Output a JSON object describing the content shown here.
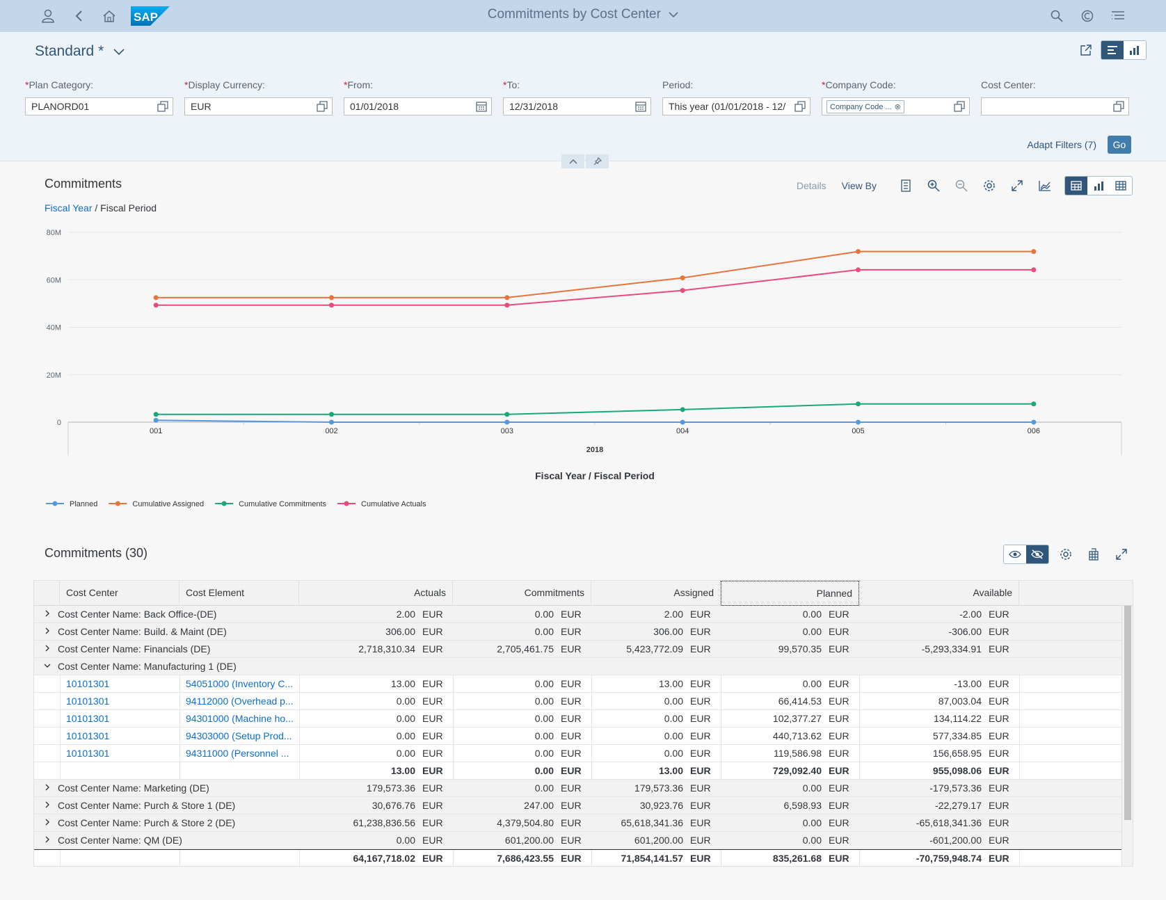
{
  "shell": {
    "title": "Commitments by Cost Center"
  },
  "filterbar": {
    "variant": "Standard *",
    "fields": [
      {
        "label": "Plan Category:",
        "required": "*",
        "value": "PLANORD01"
      },
      {
        "label": "Display Currency:",
        "required": "*",
        "value": "EUR"
      },
      {
        "label": "From:",
        "required": "*",
        "value": "01/01/2018"
      },
      {
        "label": "To:",
        "required": "*",
        "value": "12/31/2018"
      },
      {
        "label": "Period:",
        "required": "",
        "value": "This year (01/01/2018 - 12/"
      },
      {
        "label": "Company Code:",
        "required": "*",
        "value": "Company Code ..."
      },
      {
        "label": "Cost Center:",
        "required": "",
        "value": ""
      }
    ],
    "adapt_filters": "Adapt Filters (7)",
    "go": "Go"
  },
  "chart_section": {
    "title": "Commitments",
    "drill_link": "Fiscal Year",
    "drill_sep": " / ",
    "drill_current": "Fiscal Period",
    "details": "Details",
    "view_by": "View By"
  },
  "chart_data": {
    "type": "line",
    "categories": [
      "001",
      "002",
      "003",
      "004",
      "005",
      "006"
    ],
    "group_label": "2018",
    "xlabel": "Fiscal Year / Fiscal Period",
    "ylabel": "",
    "ylim": [
      0,
      80000000
    ],
    "yticks": [
      "0",
      "20M",
      "40M",
      "60M",
      "80M"
    ],
    "grid": true,
    "legend_position": "bottom-left",
    "series": [
      {
        "name": "Planned",
        "color": "#5899da",
        "values": [
          800000,
          0,
          0,
          0,
          0,
          0
        ]
      },
      {
        "name": "Cumulative Assigned",
        "color": "#e8743b",
        "values": [
          52500000,
          52500000,
          52500000,
          60800000,
          71900000,
          71900000
        ]
      },
      {
        "name": "Cumulative Commitments",
        "color": "#19a979",
        "values": [
          3300000,
          3300000,
          3300000,
          5300000,
          7700000,
          7700000
        ]
      },
      {
        "name": "Cumulative Actuals",
        "color": "#ed4a7b",
        "values": [
          49300000,
          49300000,
          49300000,
          55500000,
          64200000,
          64200000
        ]
      }
    ]
  },
  "table_section": {
    "title": "Commitments (30)",
    "columns": [
      "Cost Center",
      "Cost Element",
      "Actuals",
      "Commitments",
      "Assigned",
      "Planned",
      "Available"
    ],
    "rows": [
      {
        "kind": "grp",
        "expander": "›",
        "label": "Cost Center Name: Back Office-(DE)",
        "vals": [
          "2.00",
          "0.00",
          "2.00",
          "0.00",
          "-2.00"
        ]
      },
      {
        "kind": "grp",
        "expander": "›",
        "label": "Cost Center Name: Build. & Maint (DE)",
        "vals": [
          "306.00",
          "0.00",
          "306.00",
          "0.00",
          "-306.00"
        ]
      },
      {
        "kind": "grp",
        "expander": "›",
        "label": "Cost Center Name: Financials (DE)",
        "vals": [
          "2,718,310.34",
          "2,705,461.75",
          "5,423,772.09",
          "99,570.35",
          "-5,293,334.91"
        ]
      },
      {
        "kind": "grp-open",
        "expander": "⌄",
        "label": "Cost Center Name: Manufacturing 1 (DE)",
        "vals": []
      },
      {
        "kind": "child",
        "cc": "10101301",
        "ce": "54051000 (Inventory C...",
        "vals": [
          "13.00",
          "0.00",
          "13.00",
          "0.00",
          "-13.00"
        ]
      },
      {
        "kind": "child",
        "cc": "10101301",
        "ce": "94112000 (Overhead p...",
        "vals": [
          "0.00",
          "0.00",
          "0.00",
          "66,414.53",
          "87,003.04"
        ]
      },
      {
        "kind": "child",
        "cc": "10101301",
        "ce": "94301000 (Machine ho...",
        "vals": [
          "0.00",
          "0.00",
          "0.00",
          "102,377.27",
          "134,114.22"
        ]
      },
      {
        "kind": "child",
        "cc": "10101301",
        "ce": "94303000 (Setup Prod...",
        "vals": [
          "0.00",
          "0.00",
          "0.00",
          "440,713.62",
          "577,334.85"
        ]
      },
      {
        "kind": "child",
        "cc": "10101301",
        "ce": "94311000 (Personnel ...",
        "vals": [
          "0.00",
          "0.00",
          "0.00",
          "119,586.98",
          "156,658.95"
        ]
      },
      {
        "kind": "sub",
        "vals": [
          "13.00",
          "0.00",
          "13.00",
          "729,092.40",
          "955,098.06"
        ]
      },
      {
        "kind": "grp",
        "expander": "›",
        "label": "Cost Center Name: Marketing (DE)",
        "vals": [
          "179,573.36",
          "0.00",
          "179,573.36",
          "0.00",
          "-179,573.36"
        ]
      },
      {
        "kind": "grp",
        "expander": "›",
        "label": "Cost Center Name: Purch & Store 1 (DE)",
        "vals": [
          "30,676.76",
          "247.00",
          "30,923.76",
          "6,598.93",
          "-22,279.17"
        ]
      },
      {
        "kind": "grp",
        "expander": "›",
        "label": "Cost Center Name: Purch & Store 2 (DE)",
        "vals": [
          "61,238,836.56",
          "4,379,504.80",
          "65,618,341.36",
          "0.00",
          "-65,618,341.36"
        ]
      },
      {
        "kind": "grp",
        "expander": "›",
        "label": "Cost Center Name: QM (DE)",
        "vals": [
          "0.00",
          "601,200.00",
          "601,200.00",
          "0.00",
          "-601,200.00"
        ]
      },
      {
        "kind": "total",
        "vals": [
          "64,167,718.02",
          "7,686,423.55",
          "71,854,141.57",
          "835,261.68",
          "-70,759,948.74"
        ]
      }
    ],
    "currency": "EUR"
  }
}
